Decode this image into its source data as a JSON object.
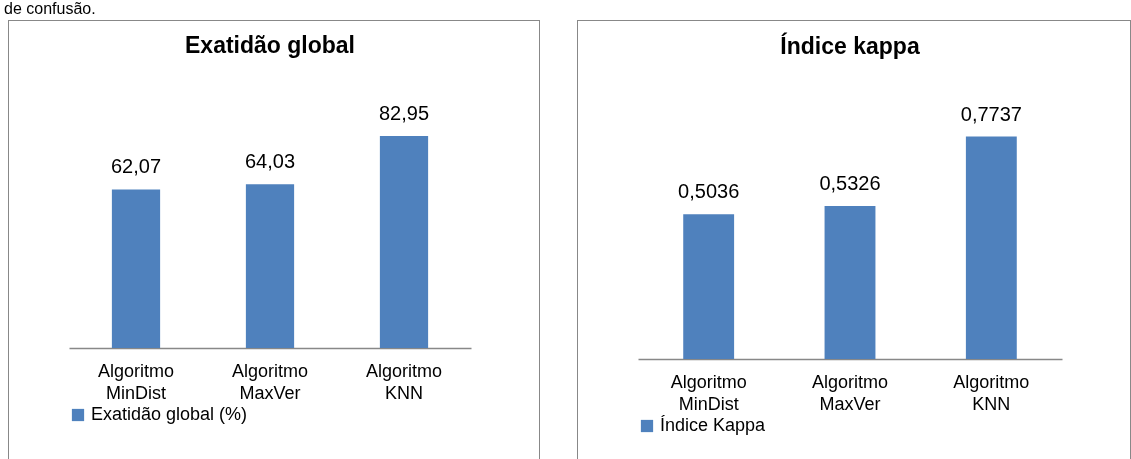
{
  "chart_data": [
    {
      "type": "bar",
      "title": "Exatidão global",
      "annotations": [
        "de confusão."
      ],
      "categories": [
        "Algoritmo MinDist",
        "Algoritmo MaxVer",
        "Algoritmo KNN"
      ],
      "series": [
        {
          "name": "Exatidão global (%)",
          "color": "#4f81bd",
          "values": [
            62.07,
            64.03,
            82.95
          ],
          "value_labels": [
            "62,07",
            "64,03",
            "82,95"
          ]
        }
      ],
      "legend": "bottom"
    },
    {
      "type": "bar",
      "title": "Índice kappa",
      "categories": [
        "Algoritmo MinDist",
        "Algoritmo MaxVer",
        "Algoritmo KNN"
      ],
      "series": [
        {
          "name": "Índice Kappa",
          "color": "#4f81bd",
          "values": [
            0.5036,
            0.5326,
            0.7737
          ],
          "value_labels": [
            "0,5036",
            "0,5326",
            "0,7737"
          ]
        }
      ],
      "legend": "bottom"
    }
  ]
}
